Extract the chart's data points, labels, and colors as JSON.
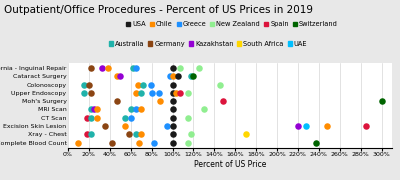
{
  "title": "Outpatient/Office Procedures - Percent of US Prices in 2019",
  "xlabel": "Percent of US Price",
  "background_color": "#e8e8e8",
  "plot_background": "#ffffff",
  "country_colors": {
    "USA": "#1a1a1a",
    "Chile": "#ff8c00",
    "Greece": "#1e90ff",
    "New Zealand": "#90ee90",
    "Spain": "#dc143c",
    "Switzerland": "#006400",
    "Australia": "#20b2aa",
    "Germany": "#8b4513",
    "Kazakhstan": "#9400d3",
    "South Africa": "#ffd700",
    "UAE": "#00bfff"
  },
  "legend_row1": [
    "USA",
    "Chile",
    "Greece",
    "New Zealand",
    "Spain",
    "Switzerland"
  ],
  "legend_row2": [
    "Australia",
    "Germany",
    "Kazakhstan",
    "South Africa",
    "UAE"
  ],
  "procedures": [
    "Hernia - Inguinal Repair",
    "Cataract Surgery",
    "Colonoscopy",
    "Upper Endoscopy",
    "Moh's Surgery",
    "MRI Scan",
    "CT Scan",
    "Excision Skin Lesion",
    "Xray - Chest",
    "Lab Test - Complete Blood Count"
  ],
  "scatter_data": [
    {
      "procedure": "Hernia - Inguinal Repair",
      "country": "Germany",
      "value": 22
    },
    {
      "procedure": "Hernia - Inguinal Repair",
      "country": "Kazakhstan",
      "value": 33
    },
    {
      "procedure": "Hernia - Inguinal Repair",
      "country": "Chile",
      "value": 38
    },
    {
      "procedure": "Hernia - Inguinal Repair",
      "country": "Australia",
      "value": 62
    },
    {
      "procedure": "Hernia - Inguinal Repair",
      "country": "Greece",
      "value": 65
    },
    {
      "procedure": "Hernia - Inguinal Repair",
      "country": "USA",
      "value": 100
    },
    {
      "procedure": "Hernia - Inguinal Repair",
      "country": "New Zealand",
      "value": 107
    },
    {
      "procedure": "Hernia - Inguinal Repair",
      "country": "New Zealand",
      "value": 125
    },
    {
      "procedure": "Cataract Surgery",
      "country": "Chile",
      "value": 47
    },
    {
      "procedure": "Cataract Surgery",
      "country": "Kazakhstan",
      "value": 50
    },
    {
      "procedure": "Cataract Surgery",
      "country": "Greece",
      "value": 98
    },
    {
      "procedure": "Cataract Surgery",
      "country": "Chile",
      "value": 100
    },
    {
      "procedure": "Cataract Surgery",
      "country": "USA",
      "value": 105
    },
    {
      "procedure": "Cataract Surgery",
      "country": "Australia",
      "value": 118
    },
    {
      "procedure": "Cataract Surgery",
      "country": "Switzerland",
      "value": 120
    },
    {
      "procedure": "Colonoscopy",
      "country": "Australia",
      "value": 15
    },
    {
      "procedure": "Colonoscopy",
      "country": "Germany",
      "value": 20
    },
    {
      "procedure": "Colonoscopy",
      "country": "Chile",
      "value": 67
    },
    {
      "procedure": "Colonoscopy",
      "country": "Australia",
      "value": 72
    },
    {
      "procedure": "Colonoscopy",
      "country": "Greece",
      "value": 79
    },
    {
      "procedure": "Colonoscopy",
      "country": "USA",
      "value": 100
    },
    {
      "procedure": "Colonoscopy",
      "country": "New Zealand",
      "value": 145
    },
    {
      "procedure": "Upper Endoscopy",
      "country": "Australia",
      "value": 15
    },
    {
      "procedure": "Upper Endoscopy",
      "country": "Germany",
      "value": 22
    },
    {
      "procedure": "Upper Endoscopy",
      "country": "Chile",
      "value": 65
    },
    {
      "procedure": "Upper Endoscopy",
      "country": "Australia",
      "value": 70
    },
    {
      "procedure": "Upper Endoscopy",
      "country": "Greece",
      "value": 80
    },
    {
      "procedure": "Upper Endoscopy",
      "country": "Greece",
      "value": 87
    },
    {
      "procedure": "Upper Endoscopy",
      "country": "USA",
      "value": 100
    },
    {
      "procedure": "Upper Endoscopy",
      "country": "Chile",
      "value": 103
    },
    {
      "procedure": "Upper Endoscopy",
      "country": "Spain",
      "value": 107
    },
    {
      "procedure": "Upper Endoscopy",
      "country": "New Zealand",
      "value": 115
    },
    {
      "procedure": "Moh's Surgery",
      "country": "Germany",
      "value": 47
    },
    {
      "procedure": "Moh's Surgery",
      "country": "Chile",
      "value": 88
    },
    {
      "procedure": "Moh's Surgery",
      "country": "USA",
      "value": 100
    },
    {
      "procedure": "Moh's Surgery",
      "country": "Spain",
      "value": 148
    },
    {
      "procedure": "Moh's Surgery",
      "country": "Switzerland",
      "value": 300
    },
    {
      "procedure": "MRI Scan",
      "country": "Australia",
      "value": 22
    },
    {
      "procedure": "MRI Scan",
      "country": "Kazakhstan",
      "value": 25
    },
    {
      "procedure": "MRI Scan",
      "country": "Chile",
      "value": 28
    },
    {
      "procedure": "MRI Scan",
      "country": "Australia",
      "value": 60
    },
    {
      "procedure": "MRI Scan",
      "country": "Greece",
      "value": 65
    },
    {
      "procedure": "MRI Scan",
      "country": "Chile",
      "value": 70
    },
    {
      "procedure": "MRI Scan",
      "country": "USA",
      "value": 100
    },
    {
      "procedure": "MRI Scan",
      "country": "New Zealand",
      "value": 130
    },
    {
      "procedure": "CT Scan",
      "country": "Spain",
      "value": 18
    },
    {
      "procedure": "CT Scan",
      "country": "Australia",
      "value": 22
    },
    {
      "procedure": "CT Scan",
      "country": "Chile",
      "value": 28
    },
    {
      "procedure": "CT Scan",
      "country": "Australia",
      "value": 55
    },
    {
      "procedure": "CT Scan",
      "country": "Greece",
      "value": 60
    },
    {
      "procedure": "CT Scan",
      "country": "USA",
      "value": 100
    },
    {
      "procedure": "CT Scan",
      "country": "New Zealand",
      "value": 115
    },
    {
      "procedure": "Excision Skin Lesion",
      "country": "Germany",
      "value": 35
    },
    {
      "procedure": "Excision Skin Lesion",
      "country": "Chile",
      "value": 55
    },
    {
      "procedure": "Excision Skin Lesion",
      "country": "Greece",
      "value": 95
    },
    {
      "procedure": "Excision Skin Lesion",
      "country": "USA",
      "value": 100
    },
    {
      "procedure": "Excision Skin Lesion",
      "country": "Kazakhstan",
      "value": 220
    },
    {
      "procedure": "Excision Skin Lesion",
      "country": "UAE",
      "value": 228
    },
    {
      "procedure": "Excision Skin Lesion",
      "country": "Chile",
      "value": 248
    },
    {
      "procedure": "Excision Skin Lesion",
      "country": "Spain",
      "value": 285
    },
    {
      "procedure": "Xray - Chest",
      "country": "Spain",
      "value": 18
    },
    {
      "procedure": "Xray - Chest",
      "country": "Australia",
      "value": 22
    },
    {
      "procedure": "Xray - Chest",
      "country": "Germany",
      "value": 58
    },
    {
      "procedure": "Xray - Chest",
      "country": "Australia",
      "value": 65
    },
    {
      "procedure": "Xray - Chest",
      "country": "Chile",
      "value": 70
    },
    {
      "procedure": "Xray - Chest",
      "country": "USA",
      "value": 100
    },
    {
      "procedure": "Xray - Chest",
      "country": "New Zealand",
      "value": 118
    },
    {
      "procedure": "Xray - Chest",
      "country": "South Africa",
      "value": 170
    },
    {
      "procedure": "Lab Test - Complete Blood Count",
      "country": "Chile",
      "value": 10
    },
    {
      "procedure": "Lab Test - Complete Blood Count",
      "country": "Germany",
      "value": 42
    },
    {
      "procedure": "Lab Test - Complete Blood Count",
      "country": "Chile",
      "value": 68
    },
    {
      "procedure": "Lab Test - Complete Blood Count",
      "country": "Greece",
      "value": 82
    },
    {
      "procedure": "Lab Test - Complete Blood Count",
      "country": "USA",
      "value": 100
    },
    {
      "procedure": "Lab Test - Complete Blood Count",
      "country": "New Zealand",
      "value": 115
    },
    {
      "procedure": "Lab Test - Complete Blood Count",
      "country": "Switzerland",
      "value": 237
    }
  ],
  "xlim": [
    0,
    310
  ],
  "xticks": [
    0,
    20,
    40,
    60,
    80,
    100,
    120,
    140,
    160,
    180,
    200,
    220,
    240,
    260,
    280,
    300
  ],
  "xtick_labels": [
    "0%",
    "20%",
    "40%",
    "60%",
    "80%",
    "100%",
    "120%",
    "140%",
    "160%",
    "180%",
    "200%",
    "220%",
    "240%",
    "260%",
    "280%",
    "300%"
  ],
  "marker_size": 22,
  "title_fontsize": 7.5,
  "tick_fontsize": 4.5,
  "label_fontsize": 5.5,
  "legend_fontsize": 4.8
}
